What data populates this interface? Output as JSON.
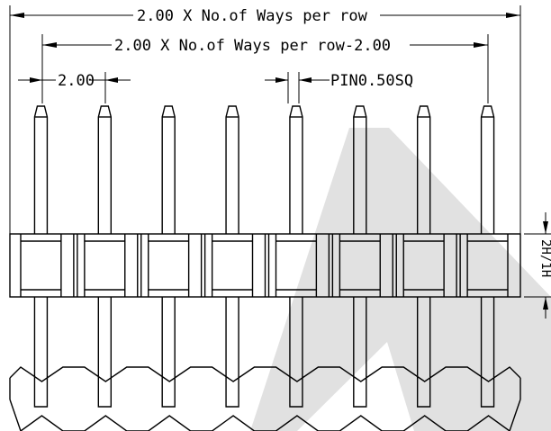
{
  "dimensions": {
    "overall_width": "2.00 X No.of Ways per row",
    "pin_span": "2.00 X No.of Ways per row-2.00",
    "pitch": "2.00",
    "pin_size": "PIN0.50SQ",
    "body_height": "2H/1H"
  },
  "pin_count": 8,
  "colors": {
    "line": "#000000",
    "watermark": "#c8c8c8"
  }
}
